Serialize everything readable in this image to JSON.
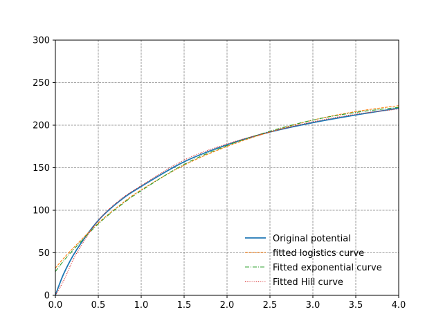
{
  "chart_data": {
    "type": "line",
    "xlim": [
      0.0,
      4.0
    ],
    "ylim": [
      0,
      300
    ],
    "xticks": [
      "0.0",
      "0.5",
      "1.0",
      "1.5",
      "2.0",
      "2.5",
      "3.0",
      "3.5",
      "4.0"
    ],
    "yticks": [
      "0",
      "50",
      "100",
      "150",
      "200",
      "250",
      "300"
    ],
    "grid": true,
    "legend_position": "lower-right",
    "x": [
      0.0,
      0.1,
      0.25,
      0.5,
      0.75,
      1.0,
      1.5,
      2.0,
      2.5,
      3.0,
      3.5,
      4.0
    ],
    "series": [
      {
        "name": "Original potential",
        "color": "#1f77b4",
        "style": "solid",
        "values": [
          0,
          26,
          54,
          88,
          111,
          128,
          157,
          177,
          192,
          203,
          212,
          220
        ]
      },
      {
        "name": "fitted logistics curve",
        "color": "#ff7f0e",
        "style": "dashed",
        "values": [
          32,
          44,
          60,
          85,
          106,
          124,
          153,
          175,
          192,
          206,
          216,
          223
        ]
      },
      {
        "name": "Fitted exponential curve",
        "color": "#2ca02c",
        "style": "dashdot",
        "values": [
          28,
          41,
          58,
          84,
          105,
          123,
          154,
          176,
          193,
          206,
          215,
          221
        ]
      },
      {
        "name": "Fitted Hill curve",
        "color": "#d62728",
        "style": "dotted",
        "values": [
          0,
          18,
          50,
          88,
          112,
          129,
          159,
          178,
          192,
          204,
          213,
          219
        ]
      }
    ]
  }
}
